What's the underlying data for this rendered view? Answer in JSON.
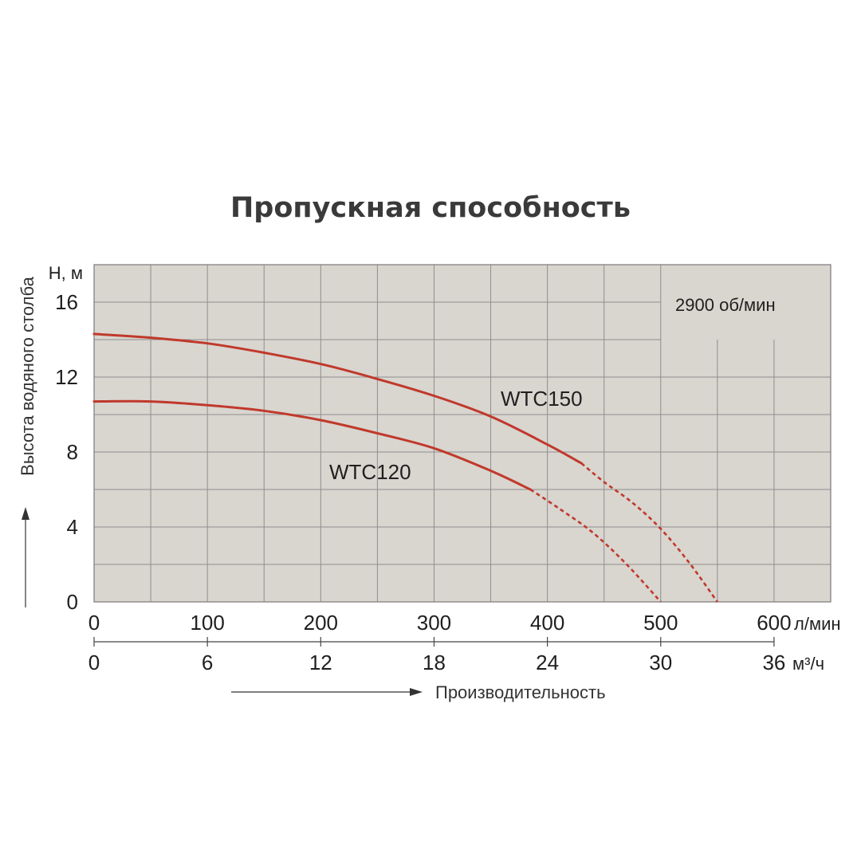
{
  "chart_data": {
    "type": "line",
    "title": "Пропускная способность",
    "annotation": "2900 об/мин",
    "ylabel": "Высота водяного столба",
    "yunit": "Н, м",
    "xlabel": "Производительность",
    "xunit_primary": "л/мин",
    "xunit_secondary": "м³/ч",
    "xlim": [
      0,
      650
    ],
    "ylim": [
      0,
      18
    ],
    "grid": true,
    "x_ticks": [
      "0",
      "100",
      "200",
      "300",
      "400",
      "500",
      "600"
    ],
    "x_ticks_secondary": [
      "0",
      "6",
      "12",
      "18",
      "24",
      "30",
      "36"
    ],
    "y_ticks": [
      "0",
      "4",
      "8",
      "12",
      "16"
    ],
    "series": [
      {
        "name": "WTC150",
        "color": "#c0392b",
        "solid": {
          "x": [
            0,
            50,
            100,
            150,
            200,
            250,
            300,
            350,
            400,
            430
          ],
          "y": [
            14.3,
            14.1,
            13.8,
            13.3,
            12.7,
            11.9,
            11.0,
            9.9,
            8.4,
            7.4
          ]
        },
        "dashed": {
          "x": [
            430,
            450,
            475,
            500,
            525,
            550
          ],
          "y": [
            7.4,
            6.4,
            5.3,
            3.9,
            2.1,
            0
          ]
        }
      },
      {
        "name": "WTC120",
        "color": "#c0392b",
        "solid": {
          "x": [
            0,
            50,
            100,
            150,
            200,
            250,
            300,
            350,
            385
          ],
          "y": [
            10.7,
            10.7,
            10.5,
            10.2,
            9.7,
            9.0,
            8.2,
            7.0,
            6.0
          ]
        },
        "dashed": {
          "x": [
            385,
            410,
            440,
            470,
            500
          ],
          "y": [
            6.0,
            5.0,
            3.7,
            2.0,
            0
          ]
        }
      }
    ]
  },
  "colors": {
    "plot_background": "#d9d5cf",
    "grid": "#8f8f8f",
    "curve": "#c0392b"
  }
}
